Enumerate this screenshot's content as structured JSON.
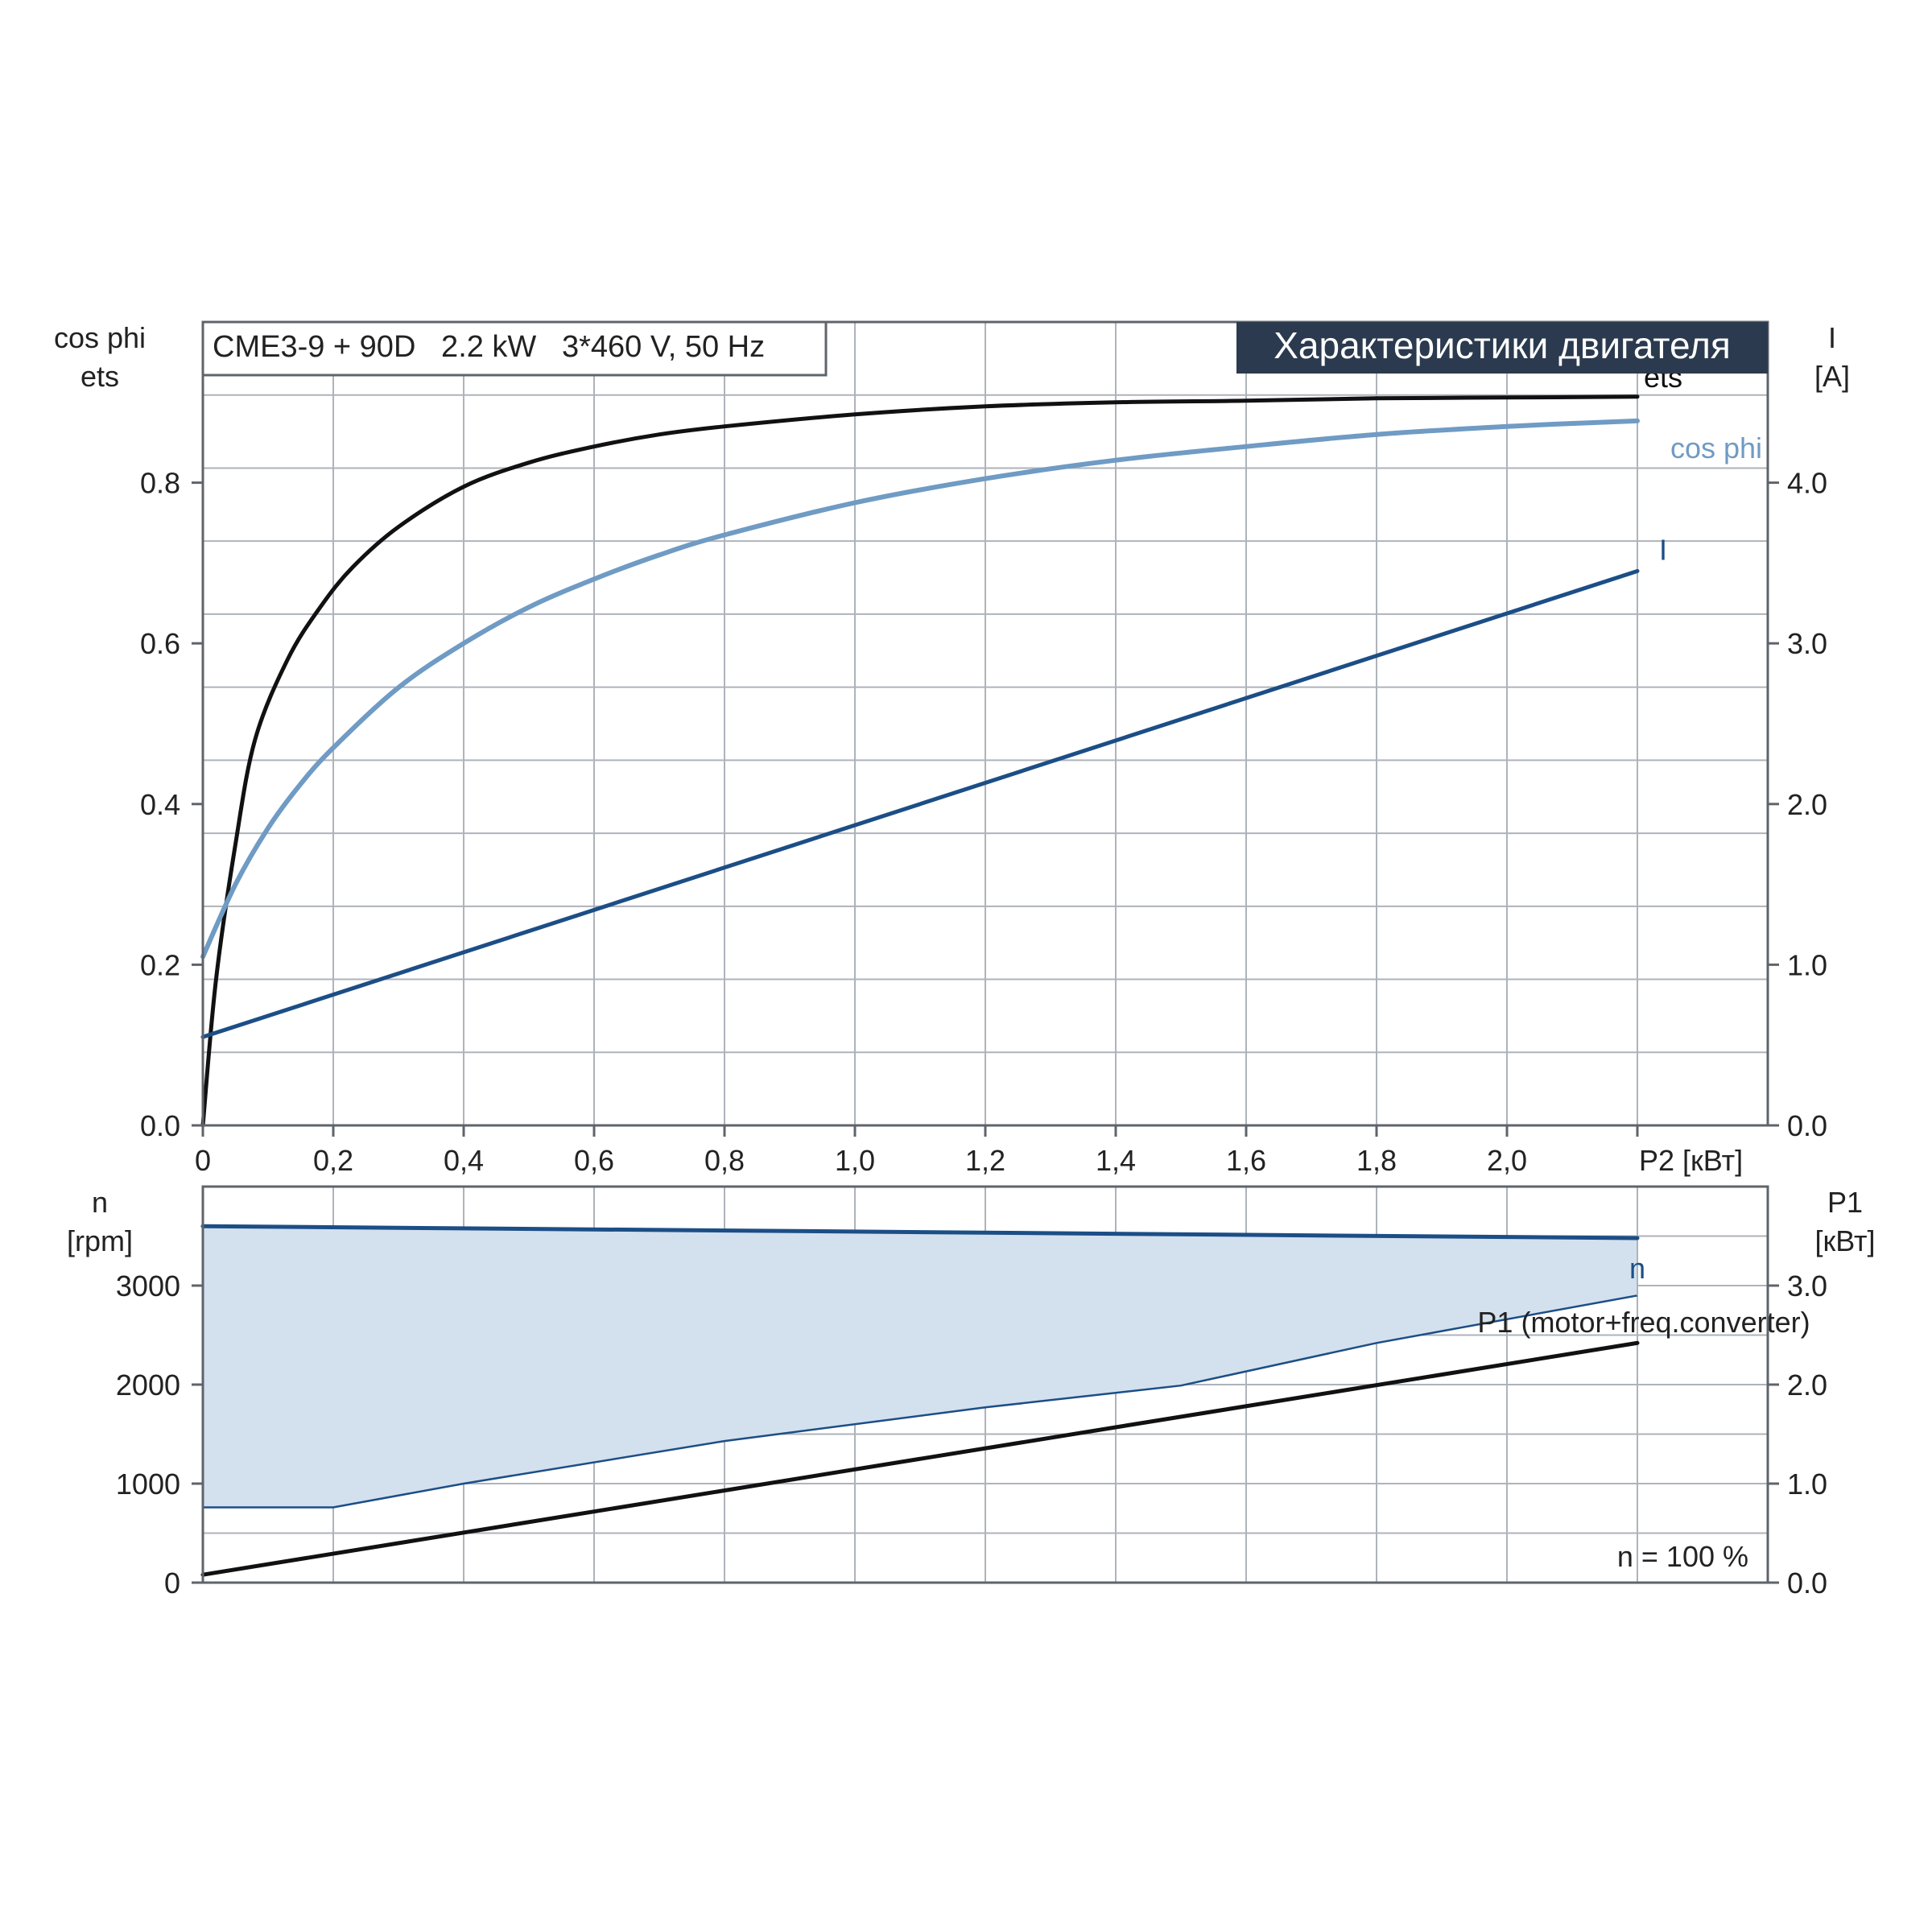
{
  "header": {
    "model_label": "CME3-9 + 90D   2.2 kW   3*460 V, 50 Hz",
    "title": "Характеристики двигателя"
  },
  "colors": {
    "grid": "#aeb3bb",
    "axis": "#5f646b",
    "ets": "#111111",
    "cos_phi": "#6f9bc4",
    "current": "#1c4e86",
    "speed": "#1c4e86",
    "p1": "#111111",
    "fill": "#d3e0ee",
    "title_bg": "#2b3a4e",
    "title_fg": "#ffffff"
  },
  "chart_data": [
    {
      "type": "line",
      "xlabel": "P2 [кВт]",
      "xlim": [
        0,
        2.4
      ],
      "x_ticks": [
        "0",
        "0,2",
        "0,4",
        "0,6",
        "0,8",
        "1,0",
        "1,2",
        "1,4",
        "1,6",
        "1,8",
        "2,0"
      ],
      "left_axis": {
        "label_lines": [
          "cos phi",
          "ets"
        ],
        "ylim": [
          0,
          1.0
        ],
        "ticks": [
          "0.0",
          "0.2",
          "0.4",
          "0.6",
          "0.8"
        ]
      },
      "right_axis": {
        "label_lines": [
          "I",
          "[A]"
        ],
        "ylim": [
          0,
          5.0
        ],
        "ticks": [
          "0.0",
          "1.0",
          "2.0",
          "3.0",
          "4.0"
        ]
      },
      "grid": true,
      "series": [
        {
          "name": "ets",
          "axis": "left",
          "x": [
            0,
            0.02,
            0.05,
            0.08,
            0.13,
            0.18,
            0.23,
            0.3,
            0.4,
            0.5,
            0.6,
            0.7,
            0.8,
            1.0,
            1.2,
            1.4,
            1.6,
            1.8,
            2.0,
            2.2
          ],
          "y": [
            0,
            0.18,
            0.35,
            0.48,
            0.58,
            0.645,
            0.695,
            0.745,
            0.795,
            0.825,
            0.845,
            0.86,
            0.87,
            0.885,
            0.895,
            0.9,
            0.902,
            0.905,
            0.906,
            0.907
          ]
        },
        {
          "name": "cos phi",
          "axis": "left",
          "x": [
            0,
            0.05,
            0.1,
            0.15,
            0.2,
            0.3,
            0.4,
            0.5,
            0.6,
            0.7,
            0.8,
            1.0,
            1.2,
            1.4,
            1.6,
            1.8,
            2.0,
            2.2
          ],
          "y": [
            0.21,
            0.3,
            0.37,
            0.425,
            0.47,
            0.545,
            0.6,
            0.645,
            0.68,
            0.71,
            0.735,
            0.775,
            0.805,
            0.828,
            0.845,
            0.86,
            0.87,
            0.877
          ]
        },
        {
          "name": "I",
          "axis": "right",
          "x": [
            0,
            2.2
          ],
          "y": [
            0.55,
            3.45
          ]
        }
      ]
    },
    {
      "type": "line",
      "xlim": [
        0,
        2.4
      ],
      "left_axis": {
        "label_lines": [
          "n",
          "[rpm]"
        ],
        "ylim": [
          0,
          4000
        ],
        "ticks": [
          "0",
          "1000",
          "2000",
          "3000"
        ]
      },
      "right_axis": {
        "label_lines": [
          "P1",
          "[кВт]"
        ],
        "ylim": [
          0,
          4.0
        ],
        "ticks": [
          "0.0",
          "1.0",
          "2.0",
          "3.0"
        ]
      },
      "grid": true,
      "series": [
        {
          "name": "n",
          "axis": "left",
          "x": [
            0,
            2.2
          ],
          "y": [
            3600,
            3480
          ]
        },
        {
          "name": "P1 (motor+freq.converter)",
          "axis": "right",
          "x": [
            0,
            2.2
          ],
          "y": [
            0.08,
            2.42
          ]
        }
      ],
      "band": {
        "axis": "left",
        "x": [
          0,
          0.2,
          0.4,
          0.8,
          1.2,
          1.5,
          1.8,
          2.2
        ],
        "lower": [
          760,
          760,
          1000,
          1430,
          1770,
          1990,
          2420,
          2900
        ],
        "upper": [
          3600,
          3590,
          3575,
          3555,
          3535,
          3520,
          3505,
          3480
        ]
      },
      "annotation": "n = 100 %"
    }
  ]
}
